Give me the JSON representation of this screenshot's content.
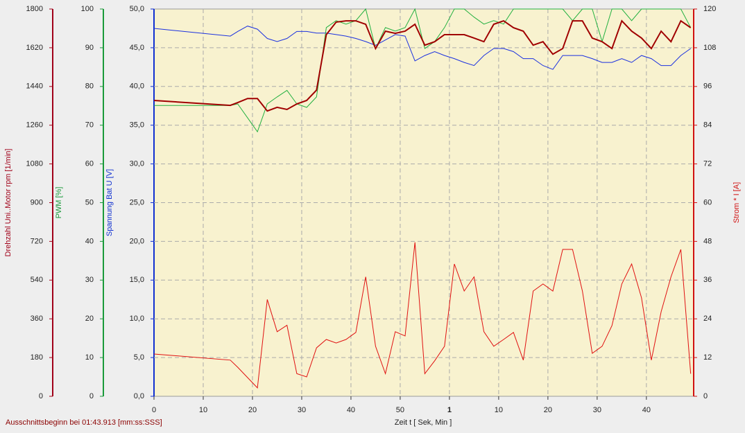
{
  "chart_data": {
    "type": "line",
    "xlabel": "Zeit   t   [ Sek, Min ]",
    "note": "Ausschnittsbeginn bei 01:43.913 [mm:ss:SSS]",
    "x": [
      0,
      15.5,
      17,
      19,
      21,
      23,
      25,
      27,
      29,
      31,
      33,
      35,
      37,
      39,
      41,
      43,
      45,
      47,
      49,
      51,
      53,
      55,
      57,
      59,
      61,
      63,
      65,
      67,
      69,
      71,
      73,
      75,
      77,
      79,
      81,
      83,
      85,
      87,
      89,
      91,
      93,
      95,
      97,
      99,
      101,
      103,
      105,
      107,
      109
    ],
    "xlim": [
      0,
      109.6
    ],
    "xticks": [
      0,
      10,
      20,
      30,
      40,
      50,
      {
        "value": 60,
        "label": "1"
      },
      {
        "value": 70,
        "label": "10"
      },
      {
        "value": 80,
        "label": "20"
      },
      {
        "value": 90,
        "label": "30"
      },
      {
        "value": 100,
        "label": "40"
      }
    ],
    "grid": true,
    "axes": [
      {
        "label": "Drehzahl Uni..Motor   rpm   [1/min]",
        "color": "#a00018",
        "lim": [
          0,
          1800
        ],
        "ticks": [
          0,
          180,
          360,
          540,
          720,
          900,
          1080,
          1260,
          1440,
          1620,
          1800
        ]
      },
      {
        "label": "PWM   [%]",
        "color": "#1a9a3a",
        "lim": [
          0,
          100
        ],
        "ticks": [
          0,
          10,
          20,
          30,
          40,
          50,
          60,
          70,
          80,
          90,
          100
        ]
      },
      {
        "label": "Spannung Bat   U   [V]",
        "color": "#1030d0",
        "lim": [
          0,
          50
        ],
        "ticks": [
          {
            "value": 0,
            "label": "0,0"
          },
          {
            "value": 5,
            "label": "5,0"
          },
          {
            "value": 10,
            "label": "10,0"
          },
          {
            "value": 15,
            "label": "15,0"
          },
          {
            "value": 20,
            "label": "20,0"
          },
          {
            "value": 25,
            "label": "25,0"
          },
          {
            "value": 30,
            "label": "30,0"
          },
          {
            "value": 35,
            "label": "35,0"
          },
          {
            "value": 40,
            "label": "40,0"
          },
          {
            "value": 45,
            "label": "45,0"
          },
          {
            "value": 50,
            "label": "50,0"
          }
        ]
      },
      {
        "label": "Strom *   I   [A]",
        "color": "#d01010",
        "lim": [
          0,
          120
        ],
        "ticks": [
          0,
          12,
          24,
          36,
          48,
          60,
          72,
          84,
          96,
          108,
          120
        ]
      }
    ],
    "series": [
      {
        "axis": 2,
        "color": "#1a30e0",
        "values": [
          47.5,
          46.5,
          47.1,
          47.8,
          47.4,
          46.2,
          45.8,
          46.2,
          47.1,
          47.1,
          46.9,
          46.9,
          46.7,
          46.5,
          46.2,
          45.8,
          45.3,
          46,
          46.7,
          46.5,
          43.3,
          44,
          44.5,
          44,
          43.6,
          43.1,
          42.7,
          44,
          44.9,
          44.9,
          44.5,
          43.6,
          43.6,
          42.7,
          42.2,
          44,
          44,
          44,
          43.6,
          43.1,
          43.1,
          43.6,
          43.1,
          44,
          43.6,
          42.7,
          42.7,
          44,
          44.9
        ]
      },
      {
        "axis": 1,
        "color": "#22b040",
        "values": [
          75.1,
          75.1,
          75.5,
          71.9,
          68.3,
          75.5,
          77.3,
          79,
          75.5,
          74.6,
          77.3,
          95.2,
          97,
          96.1,
          97,
          100,
          89.8,
          95.2,
          94.3,
          95.2,
          100,
          89.8,
          91.6,
          95.2,
          100,
          100,
          97.9,
          96.1,
          97,
          96.1,
          100,
          100,
          100,
          100,
          100,
          100,
          97,
          100,
          100,
          91.6,
          100,
          100,
          97,
          100,
          100,
          100,
          100,
          100,
          95.2
        ]
      },
      {
        "axis": 3,
        "color": "#e01010",
        "values": [
          13.1,
          11.2,
          9,
          5.8,
          2.6,
          30,
          20,
          22,
          7,
          6,
          15,
          17.6,
          16.5,
          17.6,
          19.8,
          37,
          15.5,
          7,
          20,
          18.7,
          47.7,
          7,
          11,
          15.5,
          41,
          32.6,
          37,
          20,
          15.5,
          17.6,
          19.8,
          11.2,
          32.6,
          34.8,
          32.6,
          45.5,
          45.5,
          32.6,
          13.3,
          15.5,
          21.9,
          34.8,
          41,
          30.5,
          11.2,
          26.2,
          37,
          45.5,
          7
        ]
      },
      {
        "axis": 0,
        "color": "#a00000",
        "width": 2,
        "values": [
          1375,
          1352,
          1365,
          1384,
          1384,
          1326,
          1343,
          1333,
          1359,
          1375,
          1423,
          1681,
          1739,
          1745,
          1745,
          1729,
          1616,
          1697,
          1687,
          1697,
          1729,
          1632,
          1648,
          1681,
          1681,
          1681,
          1665,
          1648,
          1729,
          1745,
          1713,
          1697,
          1632,
          1648,
          1590,
          1616,
          1745,
          1745,
          1665,
          1648,
          1616,
          1745,
          1697,
          1665,
          1616,
          1697,
          1648,
          1745,
          1713
        ]
      }
    ]
  }
}
